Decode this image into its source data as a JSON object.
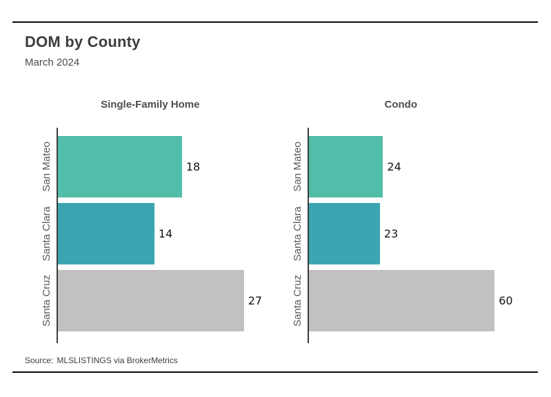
{
  "page": {
    "title": "DOM by County",
    "subtitle": "March 2024",
    "source_label": "Source:",
    "source_text": "MLSLISTINGS via BrokerMetrics"
  },
  "colors": {
    "bar_san_mateo": "#52BDA8",
    "bar_santa_clara": "#3BA6B2",
    "bar_santa_cruz": "#C1C1C1",
    "axis": "#3B3B3B",
    "rule": "#0A0A0A",
    "title_text": "#3D3D3D",
    "category_text": "#595959",
    "value_text": "#141414"
  },
  "chart_data": [
    {
      "type": "bar",
      "orientation": "horizontal",
      "title": "Single-Family Home",
      "categories": [
        "San Mateo",
        "Santa Clara",
        "Santa Cruz"
      ],
      "values": [
        18,
        14,
        27
      ],
      "value_labels": [
        "18",
        "14",
        "27"
      ],
      "bar_colors": [
        "#52BDA8",
        "#3BA6B2",
        "#C1C1C1"
      ],
      "legend": "none",
      "grid": false,
      "value_labels_position": "outside-end"
    },
    {
      "type": "bar",
      "orientation": "horizontal",
      "title": "Condo",
      "categories": [
        "San Mateo",
        "Santa Clara",
        "Santa Cruz"
      ],
      "values": [
        24,
        23,
        60
      ],
      "value_labels": [
        "24",
        "23",
        "60"
      ],
      "bar_colors": [
        "#52BDA8",
        "#3BA6B2",
        "#C1C1C1"
      ],
      "legend": "none",
      "grid": false,
      "value_labels_position": "outside-end"
    }
  ]
}
